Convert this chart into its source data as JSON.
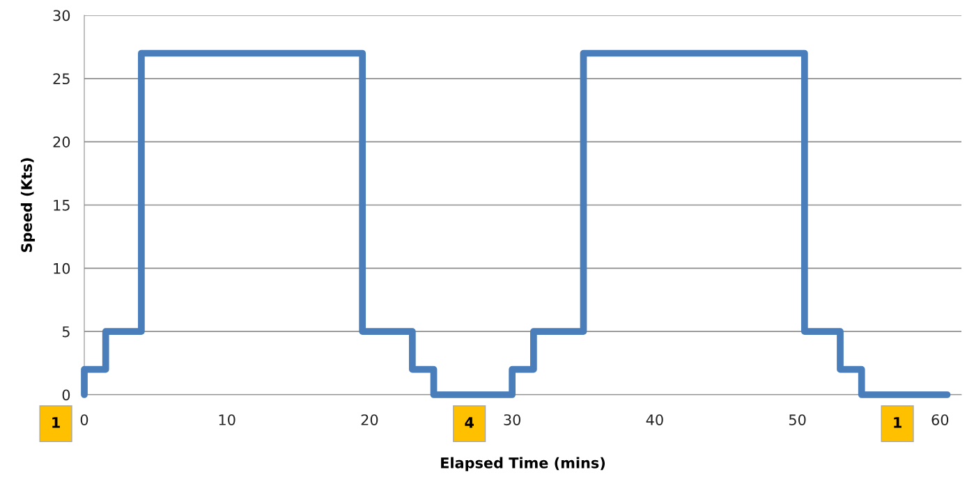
{
  "chart_data": {
    "type": "step",
    "xlabel": "Elapsed Time (mins)",
    "ylabel": "Speed (Kts)",
    "series": [
      {
        "color": "#4a7ebb",
        "x": [
          0,
          0,
          1.5,
          4,
          19.5,
          23,
          24.5,
          30,
          31.5,
          35,
          50.5,
          53,
          54.5,
          60.5
        ],
        "values": [
          0,
          2,
          5,
          27,
          5,
          2,
          0,
          2,
          5,
          27,
          5,
          2,
          0,
          0
        ]
      }
    ],
    "xlim": [
      0,
      61.5
    ],
    "xticks": [
      0,
      10,
      20,
      30,
      40,
      50,
      60
    ],
    "ylim": [
      0,
      30
    ],
    "yticks": [
      0,
      5,
      10,
      15,
      20,
      25,
      30
    ],
    "grid": "y",
    "legend": false,
    "marker": "none",
    "line_style": "solid",
    "annotations": [
      "1",
      "4",
      "1"
    ]
  }
}
